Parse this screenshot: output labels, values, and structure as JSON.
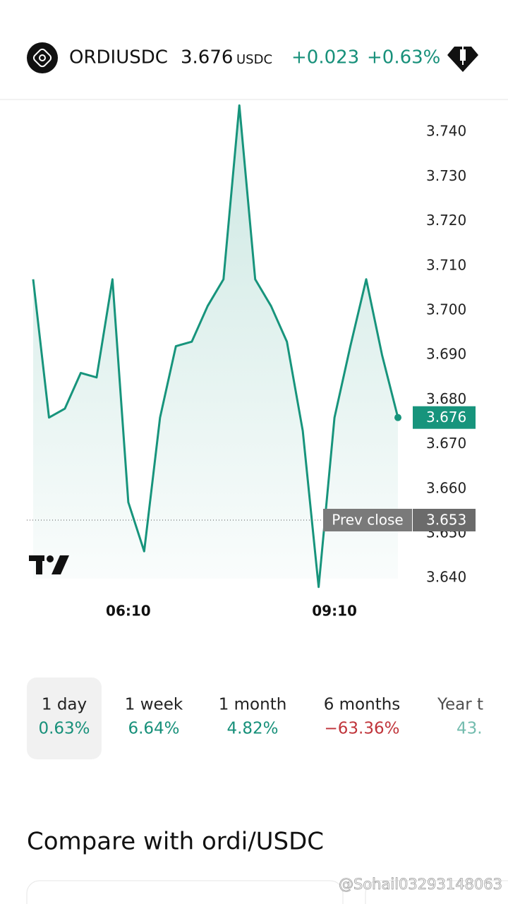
{
  "header": {
    "symbol": "ORDIUSDC",
    "price": "3.676",
    "currency": "USDC",
    "change": "+0.023",
    "change_pct": "+0.63%"
  },
  "chart_data": {
    "type": "line",
    "categories": [
      null,
      null,
      null,
      null,
      null,
      null,
      "06:10",
      null,
      null,
      null,
      null,
      null,
      null,
      null,
      null,
      null,
      null,
      null,
      null,
      "09:10",
      null,
      null,
      null,
      null
    ],
    "values": [
      3.707,
      3.676,
      3.678,
      3.686,
      3.685,
      3.707,
      3.657,
      3.646,
      3.676,
      3.692,
      3.693,
      3.701,
      3.707,
      3.746,
      3.707,
      3.701,
      3.693,
      3.673,
      3.638,
      3.676,
      3.692,
      3.707,
      3.69,
      3.676
    ],
    "color": "#17947c",
    "ylim": [
      3.6367,
      3.747
    ],
    "yticks": [
      {
        "value": 3.64,
        "label": "3.640"
      },
      {
        "value": 3.65,
        "label": "3.650"
      },
      {
        "value": 3.66,
        "label": "3.660"
      },
      {
        "value": 3.67,
        "label": "3.670"
      },
      {
        "value": 3.68,
        "label": "3.680"
      },
      {
        "value": 3.69,
        "label": "3.690"
      },
      {
        "value": 3.7,
        "label": "3.700"
      },
      {
        "value": 3.71,
        "label": "3.710"
      },
      {
        "value": 3.72,
        "label": "3.720"
      },
      {
        "value": 3.73,
        "label": "3.730"
      },
      {
        "value": 3.74,
        "label": "3.740"
      }
    ],
    "prev_close_label": "Prev close",
    "prev_close": 3.653
  },
  "periods": [
    {
      "label": "1 day",
      "change": "0.63%"
    },
    {
      "label": "1 week",
      "change": "6.64%"
    },
    {
      "label": "1 month",
      "change": "4.82%"
    },
    {
      "label": "6 months",
      "change": "−63.36%"
    },
    {
      "label": "Year t",
      "change": "43."
    }
  ],
  "compare_title": "Compare with ordi/USDC",
  "watermark": "@Sohail03293148063"
}
